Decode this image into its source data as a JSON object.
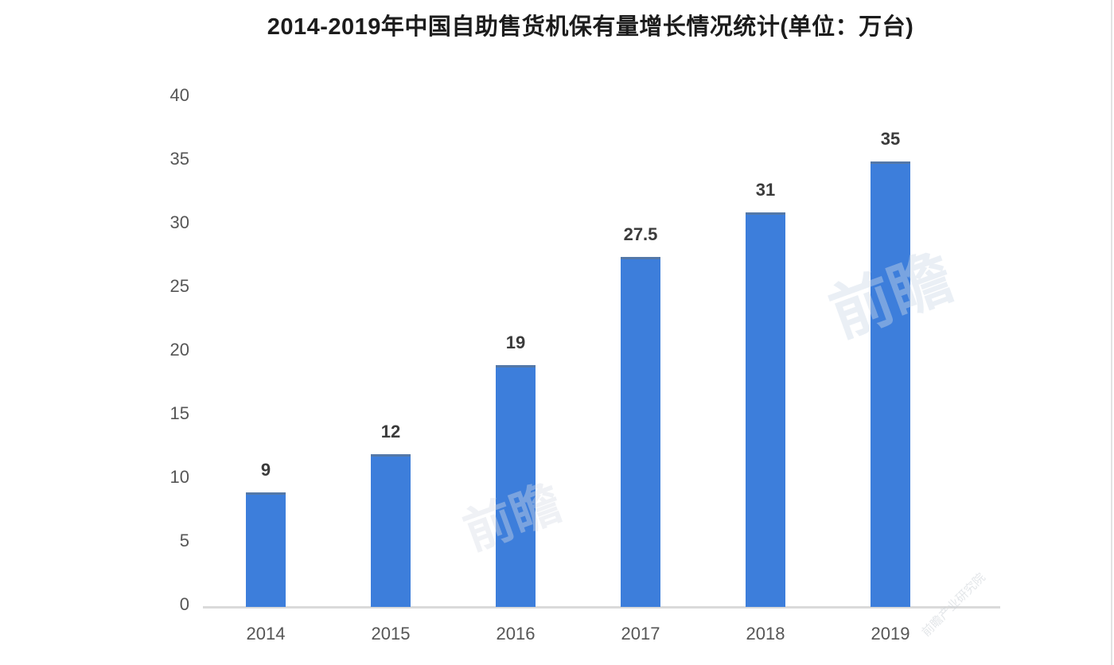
{
  "chart_data": {
    "type": "bar",
    "title": "2014-2019年中国自助售货机保有量增长情况统计(单位：万台)",
    "categories": [
      "2014",
      "2015",
      "2016",
      "2017",
      "2018",
      "2019"
    ],
    "values": [
      9,
      12,
      19,
      27.5,
      31,
      35
    ],
    "value_labels": [
      "9",
      "12",
      "19",
      "27.5",
      "31",
      "35"
    ],
    "unit": "万台",
    "xlabel": "",
    "ylabel": "",
    "y_ticks": [
      0,
      5,
      10,
      15,
      20,
      25,
      30,
      35,
      40
    ],
    "ylim": [
      0,
      40
    ],
    "grid": false,
    "legend": "none",
    "bar_color": "#3d7edb",
    "axis_line_color": "#dadada",
    "tick_label_color": "#565656",
    "value_label_color": "#3b3b3b",
    "title_color": "#1c1c1c"
  },
  "watermark": {
    "short": "前瞻",
    "name": "前瞻产业研究院"
  }
}
